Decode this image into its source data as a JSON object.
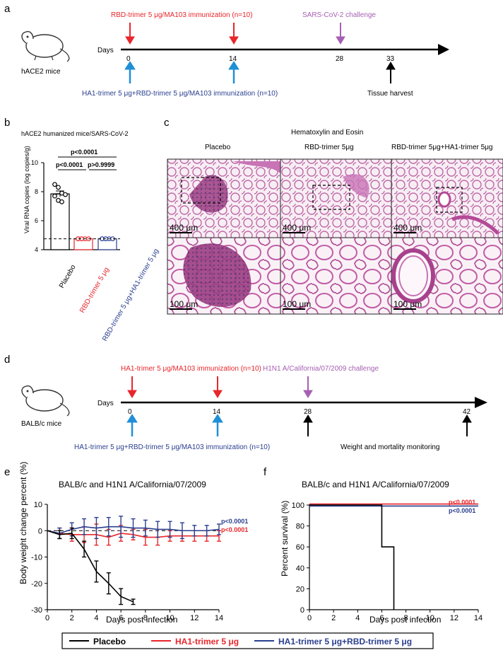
{
  "panel_a": {
    "label": "a",
    "mouse_label": "hACE2 mice",
    "days_label": "Days",
    "ticks": [
      "0",
      "14",
      "28",
      "33"
    ],
    "top_red": "RBD-trimer 5 μg/MA103 immunization (n=10)",
    "top_purple": "SARS-CoV-2 challenge",
    "bottom_blue": "HA1-trimer 5 μg+RBD-trimer 5 μg/MA103 immunization (n=10)",
    "bottom_black": "Tissue harvest"
  },
  "panel_b": {
    "label": "b",
    "title": "hACE2 humanized mice/SARS-CoV-2",
    "p_top": "p<0.0001",
    "p_left": "p<0.0001",
    "p_right": "p>0.9999",
    "ylabel": "Viral RNA copies (log copies/g)",
    "yticks": [
      "4",
      "6",
      "8",
      "10"
    ],
    "categories": [
      "Placebo",
      "RBD-trimer 5 μg",
      "RBD-trimer 5 μg+HA1-trimer 5 μg"
    ]
  },
  "panel_c": {
    "label": "c",
    "title": "Hematoxylin and Eosin",
    "columns": [
      "Placebo",
      "RBD-trimer 5μg",
      "RBD-trimer 5μg+HA1-trimer 5μg"
    ],
    "scale_top": "400 μm",
    "scale_bottom": "100 μm"
  },
  "panel_d": {
    "label": "d",
    "mouse_label": "BALB/c mice",
    "days_label": "Days",
    "ticks": [
      "0",
      "14",
      "28",
      "42"
    ],
    "top_red": "HA1-trimer 5 μg/MA103 immunization (n=10)",
    "top_purple": "H1N1 A/California/07/2009 challenge",
    "bottom_blue": "HA1-trimer 5 μg+RBD-trimer 5 μg/MA103 immunization (n=10)",
    "bottom_black": "Weight and mortality monitoring"
  },
  "panel_e": {
    "label": "e",
    "title": "BALB/c and H1N1 A/California/07/2009",
    "ylabel": "Body weight change percent (%)",
    "xlabel": "Days post infection",
    "p_blue": "p<0.0001",
    "p_red": "p<0.0001",
    "xticks": [
      "0",
      "2",
      "4",
      "6",
      "8",
      "10",
      "12",
      "14"
    ],
    "yticks": [
      "-30",
      "-20",
      "-10",
      "0",
      "10"
    ]
  },
  "panel_f": {
    "label": "f",
    "title": "BALB/c and H1N1 A/California/07/2009",
    "ylabel": "Percent survival (%)",
    "xlabel": "Days post infection",
    "p_red": "p<0.0001",
    "p_blue": "p<0.0001",
    "xticks": [
      "0",
      "2",
      "4",
      "6",
      "8",
      "10",
      "12",
      "14"
    ],
    "yticks": [
      "0",
      "20",
      "40",
      "60",
      "80",
      "100"
    ]
  },
  "legend": {
    "items": [
      "Placebo",
      "HA1-trimer 5 μg",
      "HA1-trimer 5 μg+RBD-trimer 5 μg"
    ]
  },
  "colors": {
    "red": "#e8262b",
    "blue": "#1f5fae",
    "purple": "#a660b3",
    "navy": "#2a3f8f",
    "black": "#000000"
  },
  "chart_data": [
    {
      "type": "bar",
      "title": "hACE2 humanized mice/SARS-CoV-2",
      "ylabel": "Viral RNA copies (log copies/g)",
      "categories": [
        "Placebo",
        "RBD-trimer 5 μg",
        "RBD-trimer 5 μg+HA1-trimer 5 μg"
      ],
      "values": [
        7.85,
        4.75,
        4.75
      ],
      "errors": [
        0.2,
        0,
        0
      ],
      "points": [
        [
          8.5,
          8.3,
          7.9,
          7.8,
          7.7,
          7.4,
          7.3
        ],
        [
          4.75,
          4.75,
          4.75,
          4.75,
          4.75,
          4.75
        ],
        [
          4.75,
          4.75,
          4.75,
          4.75,
          4.75,
          4.75
        ]
      ],
      "detection_limit": 4.75,
      "ylim": [
        4,
        10
      ]
    },
    {
      "type": "line",
      "title": "BALB/c and H1N1 A/California/07/2009",
      "xlabel": "Days post infection",
      "ylabel": "Body weight change percent (%)",
      "xlim": [
        0,
        14
      ],
      "ylim": [
        -30,
        10
      ],
      "series": [
        {
          "name": "Placebo",
          "x": [
            0,
            1,
            2,
            3,
            4,
            5,
            6,
            7
          ],
          "y": [
            0,
            -1.5,
            -1,
            -7,
            -15.5,
            -20,
            -25,
            -27
          ],
          "err": [
            0,
            1.5,
            2,
            3,
            4,
            4,
            3,
            1
          ]
        },
        {
          "name": "HA1-trimer 5 μg",
          "x": [
            0,
            1,
            2,
            3,
            4,
            5,
            6,
            7,
            8,
            9,
            10,
            11,
            12,
            13,
            14
          ],
          "y": [
            0,
            -1,
            -1.5,
            -1.5,
            -1.5,
            -2.5,
            -1,
            -1.5,
            -2.5,
            -2.5,
            -2,
            -2,
            -2,
            -2,
            -2
          ],
          "err": [
            0,
            2,
            2.5,
            3,
            4,
            3,
            3,
            2,
            3,
            3,
            2,
            2,
            2,
            2,
            2
          ]
        },
        {
          "name": "HA1-trimer 5 μg+RBD-trimer 5 μg",
          "x": [
            0,
            1,
            2,
            3,
            4,
            5,
            6,
            7,
            8,
            9,
            10,
            11,
            12,
            13,
            14
          ],
          "y": [
            0,
            -1,
            0.5,
            1.5,
            1,
            1.5,
            1.5,
            1,
            1,
            0.5,
            0.5,
            0,
            0,
            0,
            0.5
          ],
          "err": [
            0,
            2,
            2.5,
            3,
            4,
            3.5,
            4,
            3.5,
            3,
            3,
            3,
            3,
            2,
            2,
            2
          ]
        }
      ]
    },
    {
      "type": "line",
      "title": "BALB/c and H1N1 A/California/07/2009",
      "xlabel": "Days post infection",
      "ylabel": "Percent survival (%)",
      "xlim": [
        0,
        14
      ],
      "ylim": [
        0,
        100
      ],
      "series": [
        {
          "name": "Placebo",
          "x": [
            0,
            6,
            6,
            7,
            7
          ],
          "y": [
            100,
            100,
            60,
            60,
            0
          ]
        },
        {
          "name": "HA1-trimer 5 μg",
          "x": [
            0,
            14
          ],
          "y": [
            101,
            101
          ]
        },
        {
          "name": "HA1-trimer 5 μg+RBD-trimer 5 μg",
          "x": [
            0,
            14
          ],
          "y": [
            99,
            99
          ]
        }
      ]
    }
  ]
}
